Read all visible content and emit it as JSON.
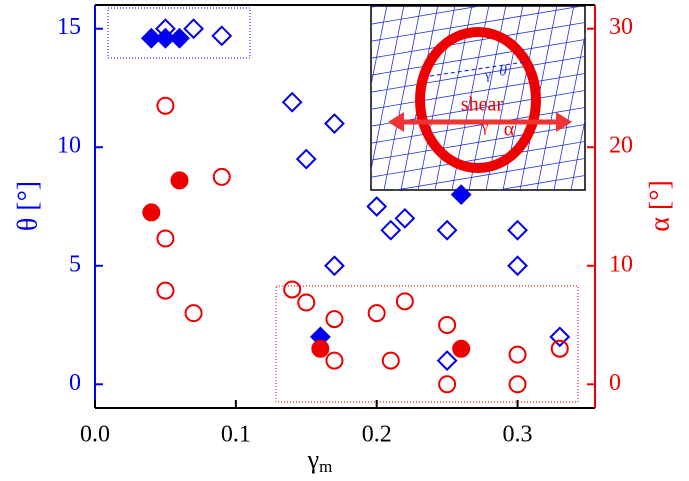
{
  "chart_data": {
    "type": "scatter",
    "x_label": "γ",
    "x_label_sub": "m",
    "y_label": "θ [°]",
    "y2_label": "α [°]",
    "xlim": [
      0,
      0.355
    ],
    "ylim": [
      -1,
      16
    ],
    "y2lim": [
      -2,
      32
    ],
    "xticks": [
      {
        "value": 0,
        "label": "0.0"
      },
      0.1,
      0.2,
      0.3
    ],
    "yticks": [
      0,
      5,
      10,
      15
    ],
    "y2ticks": [
      0,
      10,
      20,
      30
    ],
    "y_color": "#0000ee",
    "y2_color": "#ee0000",
    "series": [
      {
        "color": "#0000ee",
        "marker": "diamond",
        "filled": true,
        "x": [
          0.04,
          0.05,
          0.06,
          0.16,
          0.26
        ],
        "values": [
          14.6,
          14.6,
          14.6,
          2.0,
          8.0
        ]
      },
      {
        "color": "#0000ee",
        "marker": "diamond",
        "filled": false,
        "x": [
          0.05,
          0.07,
          0.09,
          0.14,
          0.17,
          0.15,
          0.2,
          0.22,
          0.21,
          0.25,
          0.3,
          0.17,
          0.3,
          0.33,
          0.25
        ],
        "values": [
          15.0,
          15.0,
          14.7,
          11.9,
          11.0,
          9.5,
          7.5,
          7.0,
          6.5,
          6.5,
          6.5,
          5.0,
          5.0,
          2.0,
          1.0
        ]
      },
      {
        "color": "#ee0000",
        "marker": "circle",
        "filled": true,
        "axis": "y2",
        "x": [
          0.04,
          0.06,
          0.16,
          0.26
        ],
        "values": [
          14.5,
          17.2,
          3.0,
          3.0
        ]
      },
      {
        "color": "#ee0000",
        "marker": "circle",
        "filled": false,
        "axis": "y2",
        "x": [
          0.05,
          0.09,
          0.05,
          0.05,
          0.07,
          0.14,
          0.15,
          0.17,
          0.2,
          0.22,
          0.17,
          0.21,
          0.25,
          0.25,
          0.3,
          0.3,
          0.33
        ],
        "values": [
          23.5,
          17.5,
          12.3,
          7.9,
          6.0,
          8.0,
          6.9,
          5.5,
          6.0,
          7.0,
          2.0,
          2.0,
          5.0,
          0,
          2.5,
          0,
          3.0
        ]
      }
    ]
  },
  "inset": {
    "shear": "shear",
    "gamma_top": "γ",
    "theta": "θ",
    "gamma_bottom": "γ",
    "alpha": "α"
  }
}
